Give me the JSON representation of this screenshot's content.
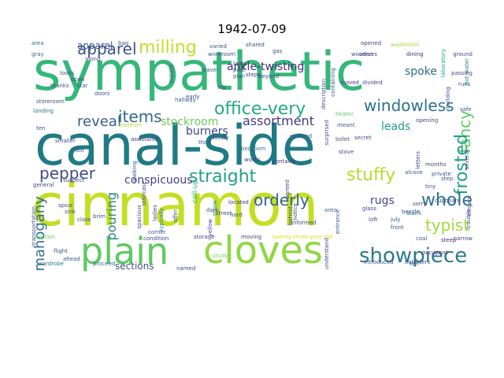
{
  "title": "1942-07-09",
  "words": [
    {
      "text": "sympathetic",
      "color": "#35b779"
    },
    {
      "text": "canal-side",
      "color": "#1f7a84"
    },
    {
      "text": "cinnamon",
      "color": "#c2df23"
    },
    {
      "text": "plain",
      "color": "#5ec962"
    },
    {
      "text": "cloves",
      "color": "#8fd744"
    },
    {
      "text": "showpiece",
      "color": "#2a788e"
    },
    {
      "text": "apparel",
      "color": "#3b528b"
    },
    {
      "text": "milling",
      "color": "#bddf26"
    },
    {
      "text": "office-very",
      "color": "#22a884"
    },
    {
      "text": "windowless",
      "color": "#2c728e"
    },
    {
      "text": "fancy",
      "color": "#5ec962"
    },
    {
      "text": "frosted",
      "color": "#1fa187"
    },
    {
      "text": "items",
      "color": "#31688e"
    },
    {
      "text": "reveal",
      "color": "#355f8d"
    },
    {
      "text": "straight",
      "color": "#20a386"
    },
    {
      "text": "assortment",
      "color": "#443983"
    },
    {
      "text": "stuffy",
      "color": "#b5de2b"
    },
    {
      "text": "whole",
      "color": "#2c728e"
    },
    {
      "text": "pepper",
      "color": "#3e4a89"
    },
    {
      "text": "orderly",
      "color": "#33638d"
    },
    {
      "text": "typist",
      "color": "#9fda3a"
    },
    {
      "text": "mahogany",
      "color": "#2d708e"
    },
    {
      "text": "ankle-twisting",
      "color": "#472d7b"
    },
    {
      "text": "burners",
      "color": "#3f4788"
    },
    {
      "text": "spoke",
      "color": "#2f6c8e"
    },
    {
      "text": "leads",
      "color": "#1f9e89"
    },
    {
      "text": "rugs",
      "color": "#3e4989"
    },
    {
      "text": "stockroom",
      "color": "#6ccd5a"
    },
    {
      "text": "conspicuous",
      "color": "#433e85"
    },
    {
      "text": "pouring",
      "color": "#26828e"
    },
    {
      "text": "sections",
      "color": "#3b528b"
    },
    {
      "text": "apparel",
      "color": "#3b528b"
    },
    {
      "text": "washroom",
      "color": "#a0da39"
    },
    {
      "text": "dining",
      "color": "#482878"
    },
    {
      "text": "laboratory",
      "color": "#1f998a"
    },
    {
      "text": "hot-water",
      "color": "#25858e"
    },
    {
      "text": "divided",
      "color": "#3e4c8a"
    },
    {
      "text": "moved",
      "color": "#433d84"
    },
    {
      "text": "heater",
      "color": "#5ec962"
    },
    {
      "text": "meant",
      "color": "#3a548c"
    },
    {
      "text": "covered",
      "color": "#3b518b"
    },
    {
      "text": "bedroom",
      "color": "#2d718e"
    },
    {
      "text": "alcove",
      "color": "#3b528b"
    },
    {
      "text": "opening",
      "color": "#3e4a89"
    },
    {
      "text": "steep",
      "color": "#482677"
    },
    {
      "text": "coal",
      "color": "#34618d"
    },
    {
      "text": "occupant",
      "color": "#46307e"
    },
    {
      "text": "study",
      "color": "#7ad151"
    },
    {
      "text": "storage",
      "color": "#3e4989"
    },
    {
      "text": "moving",
      "color": "#433d84"
    },
    {
      "text": "twenty-three-year-old",
      "color": "#d8e219"
    },
    {
      "text": "introduced",
      "color": "#3b528b"
    },
    {
      "text": "proceed",
      "color": "#31688e"
    },
    {
      "text": "flight",
      "color": "#3b528b"
    },
    {
      "text": "explain",
      "color": "#6ccd5a"
    },
    {
      "text": "wardrobe",
      "color": "#2c728e"
    },
    {
      "text": "located",
      "color": "#453581"
    },
    {
      "text": "informed",
      "color": "#3e4a89"
    },
    {
      "text": "contains",
      "color": "#46307e"
    },
    {
      "text": "typically",
      "color": "#287d8e"
    },
    {
      "text": "spacious",
      "color": "#3e4c8a"
    },
    {
      "text": "throw",
      "color": "#23888e"
    },
    {
      "text": "call-up",
      "color": "#35b779"
    },
    {
      "text": "smaller",
      "color": "#3e4989"
    },
    {
      "text": "landing",
      "color": "#2d718e"
    },
    {
      "text": "storeroom",
      "color": "#3b528b"
    },
    {
      "text": "linoleum",
      "color": "#a5db36"
    },
    {
      "text": "assistants",
      "color": "#453781"
    },
    {
      "text": "gray",
      "color": "#32658e"
    },
    {
      "text": "area",
      "color": "#2d708e"
    },
    {
      "text": "bag",
      "color": "#3e4989"
    },
    {
      "text": "varied",
      "color": "#3b528b"
    },
    {
      "text": "workroom",
      "color": "#3b528b"
    },
    {
      "text": "shared",
      "color": "#3e4989"
    },
    {
      "text": "steps",
      "color": "#433d84"
    },
    {
      "text": "lamp",
      "color": "#46327e"
    },
    {
      "text": "plan",
      "color": "#3b528b"
    },
    {
      "text": "beyond",
      "color": "#3e4989"
    },
    {
      "text": "serves",
      "color": "#3b528b"
    },
    {
      "text": "opened",
      "color": "#3e4989"
    },
    {
      "text": "wooden",
      "color": "#3e4989"
    },
    {
      "text": "front",
      "color": "#3b528b"
    },
    {
      "text": "july",
      "color": "#3b528b"
    },
    {
      "text": "loft",
      "color": "#3b528b"
    },
    {
      "text": "glass",
      "color": "#3e4989"
    },
    {
      "text": "beside",
      "color": "#3b528b"
    },
    {
      "text": "stairs",
      "color": "#2c728e"
    },
    {
      "text": "left",
      "color": "#3b528b"
    },
    {
      "text": "ten",
      "color": "#3b528b"
    },
    {
      "text": "bin",
      "color": "#3e4989"
    },
    {
      "text": "sink",
      "color": "#3e4989"
    },
    {
      "text": "class",
      "color": "#3b528b"
    },
    {
      "text": "spice",
      "color": "#3e4989"
    },
    {
      "text": "brim",
      "color": "#3b528b"
    },
    {
      "text": "general",
      "color": "#3e4989"
    },
    {
      "text": "suspect",
      "color": "#3b528b"
    },
    {
      "text": "transportation",
      "color": "#3b528b"
    },
    {
      "text": "named",
      "color": "#3e4989"
    },
    {
      "text": "entrance",
      "color": "#3b528b"
    },
    {
      "text": "onto",
      "color": "#3b528b"
    },
    {
      "text": "surprised",
      "color": "#3b528b"
    },
    {
      "text": "stove",
      "color": "#3e4989"
    },
    {
      "text": "toilet",
      "color": "#3b528b"
    },
    {
      "text": "secret",
      "color": "#3e4989"
    },
    {
      "text": "tiny",
      "color": "#3b528b"
    },
    {
      "text": "sorry",
      "color": "#3e4989"
    },
    {
      "text": "cupboard",
      "color": "#3b528b"
    },
    {
      "text": "elegant",
      "color": "#3e4989"
    },
    {
      "text": "safe",
      "color": "#3b528b"
    },
    {
      "text": "runs",
      "color": "#3b528b"
    },
    {
      "text": "passing",
      "color": "#3e4989"
    },
    {
      "text": "ground",
      "color": "#3b528b"
    },
    {
      "text": "leave",
      "color": "#3b528b"
    },
    {
      "text": "past",
      "color": "#3e4989"
    },
    {
      "text": "description",
      "color": "#3b528b"
    },
    {
      "text": "early",
      "color": "#3e4989"
    },
    {
      "text": "supply",
      "color": "#3b528b"
    },
    {
      "text": "third",
      "color": "#3b528b"
    },
    {
      "text": "works",
      "color": "#3e4989"
    },
    {
      "text": "offer",
      "color": "#3b528b"
    },
    {
      "text": "street",
      "color": "#3e4989"
    },
    {
      "text": "gas",
      "color": "#3b528b"
    },
    {
      "text": "along",
      "color": "#3e4989"
    },
    {
      "text": "thanks",
      "color": "#3b528b"
    },
    {
      "text": "open",
      "color": "#3e4989"
    },
    {
      "text": "doors",
      "color": "#3b528b"
    },
    {
      "text": "looks",
      "color": "#3e4989"
    },
    {
      "text": "star",
      "color": "#3b528b"
    },
    {
      "text": "staircase",
      "color": "#3e4989"
    },
    {
      "text": "corner",
      "color": "#3b528b"
    },
    {
      "text": "notice",
      "color": "#3e4989"
    },
    {
      "text": "outsiders",
      "color": "#3b528b"
    },
    {
      "text": "agreed",
      "color": "#3e4989"
    },
    {
      "text": "containing",
      "color": "#3b528b"
    },
    {
      "text": "several",
      "color": "#3e4989"
    },
    {
      "text": "building",
      "color": "#3b528b"
    },
    {
      "text": "letters",
      "color": "#3e4989"
    },
    {
      "text": "lovely",
      "color": "#3b528b"
    },
    {
      "text": "dark",
      "color": "#3e4989"
    },
    {
      "text": "hallway",
      "color": "#3b528b"
    },
    {
      "text": "yellow",
      "color": "#3e4989"
    },
    {
      "text": "walking",
      "color": "#3b528b"
    },
    {
      "text": "ladies",
      "color": "#3e4989"
    },
    {
      "text": "ahead",
      "color": "#3b528b"
    },
    {
      "text": "condition",
      "color": "#3e4989"
    },
    {
      "text": "narrow",
      "color": "#3b528b"
    },
    {
      "text": "top",
      "color": "#3e4989"
    },
    {
      "text": "hard",
      "color": "#3b528b"
    },
    {
      "text": "behind",
      "color": "#3e4989"
    },
    {
      "text": "private",
      "color": "#3b528b"
    },
    {
      "text": "months",
      "color": "#3e4989"
    },
    {
      "text": "step",
      "color": "#3b528b"
    },
    {
      "text": "understand",
      "color": "#3e4989"
    },
    {
      "text": "trouble",
      "color": "#3b528b"
    }
  ]
}
